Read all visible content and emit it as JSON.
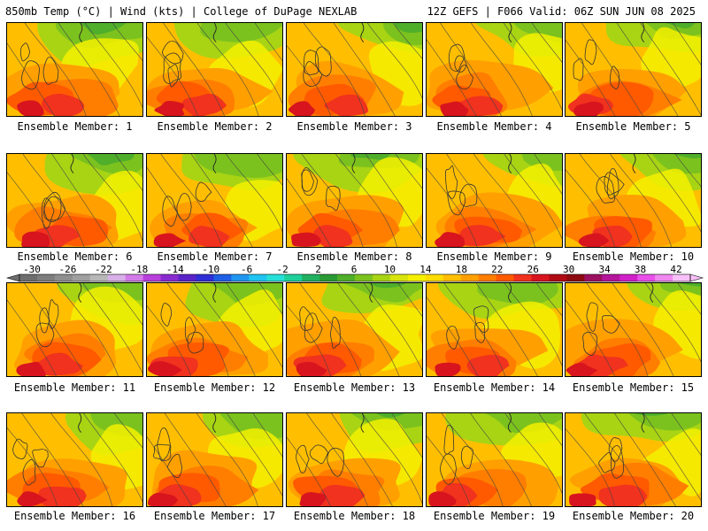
{
  "header": {
    "left_title": "850mb Temp (°C) | Wind (kts) | College of DuPage NEXLAB",
    "right_title": "12Z GEFS | F066 Valid: 06Z SUN JUN 08 2025"
  },
  "members": [
    {
      "label": "Ensemble Member: 1"
    },
    {
      "label": "Ensemble Member: 2"
    },
    {
      "label": "Ensemble Member: 3"
    },
    {
      "label": "Ensemble Member: 4"
    },
    {
      "label": "Ensemble Member: 5"
    },
    {
      "label": "Ensemble Member: 6"
    },
    {
      "label": "Ensemble Member: 7"
    },
    {
      "label": "Ensemble Member: 8"
    },
    {
      "label": "Ensemble Member: 9"
    },
    {
      "label": "Ensemble Member: 10"
    },
    {
      "label": "Ensemble Member: 11"
    },
    {
      "label": "Ensemble Member: 12"
    },
    {
      "label": "Ensemble Member: 13"
    },
    {
      "label": "Ensemble Member: 14"
    },
    {
      "label": "Ensemble Member: 15"
    },
    {
      "label": "Ensemble Member: 16"
    },
    {
      "label": "Ensemble Member: 17"
    },
    {
      "label": "Ensemble Member: 18"
    },
    {
      "label": "Ensemble Member: 19"
    },
    {
      "label": "Ensemble Member: 20"
    }
  ],
  "colorbar": {
    "labels": [
      "-30",
      "-26",
      "-22",
      "-18",
      "-14",
      "-10",
      "-6",
      "-2",
      "2",
      "6",
      "10",
      "14",
      "18",
      "22",
      "26",
      "30",
      "34",
      "38",
      "42"
    ],
    "colors": [
      "#6e6e6e",
      "#7e7e7e",
      "#8f8f8f",
      "#a0a0a0",
      "#b8b8b8",
      "#d8b0e8",
      "#d27ae8",
      "#b93fdc",
      "#8a2bd0",
      "#5a23c8",
      "#2f2fd6",
      "#1f5fe6",
      "#1f95f0",
      "#20c4f0",
      "#26e0d8",
      "#1fd09a",
      "#20b060",
      "#2a9a35",
      "#4fae2a",
      "#7cc21e",
      "#a8d414",
      "#d8e40e",
      "#f5f000",
      "#ffdc00",
      "#ffbf00",
      "#ffa000",
      "#ff7e00",
      "#ff5a00",
      "#f0321e",
      "#d8141e",
      "#b00a14",
      "#8c0a10",
      "#9c1060",
      "#b4169a",
      "#d020c8",
      "#e850e8",
      "#f088f0",
      "#f8c0f8"
    ]
  }
}
